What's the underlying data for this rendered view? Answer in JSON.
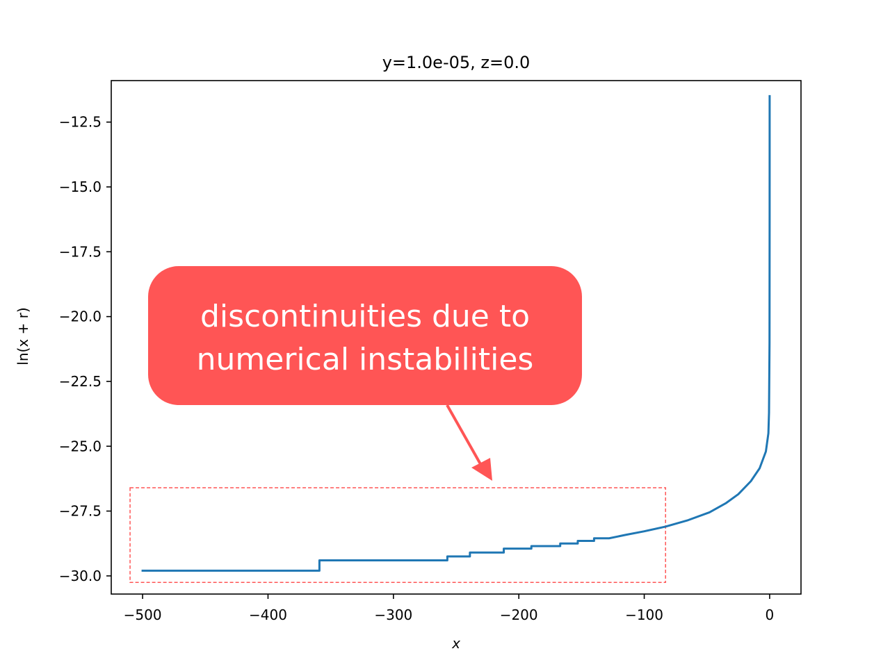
{
  "chart_data": {
    "type": "line",
    "title": "y=1.0e-05, z=0.0",
    "xlabel": "x",
    "ylabel": "ln(x + r)",
    "xlim": [
      -525,
      25
    ],
    "ylim": [
      -30.7,
      -10.9
    ],
    "x_ticks": [
      {
        "value": -500,
        "label": "−500"
      },
      {
        "value": -400,
        "label": "−400"
      },
      {
        "value": -300,
        "label": "−300"
      },
      {
        "value": -200,
        "label": "−200"
      },
      {
        "value": -100,
        "label": "−100"
      },
      {
        "value": 0,
        "label": "0"
      }
    ],
    "y_ticks": [
      {
        "value": -12.5,
        "label": "−12.5"
      },
      {
        "value": -15.0,
        "label": "−15.0"
      },
      {
        "value": -17.5,
        "label": "−17.5"
      },
      {
        "value": -20.0,
        "label": "−20.0"
      },
      {
        "value": -22.5,
        "label": "−22.5"
      },
      {
        "value": -25.0,
        "label": "−25.0"
      },
      {
        "value": -27.5,
        "label": "−27.5"
      },
      {
        "value": -30.0,
        "label": "−30.0"
      }
    ],
    "grid": false,
    "legend": "none",
    "series_color": "#1f77b4",
    "series": [
      {
        "x": [
          -500,
          -359,
          -359,
          -257,
          -257,
          -239,
          -239,
          -212,
          -212,
          -190,
          -190,
          -167,
          -167,
          -153,
          -153,
          -140,
          -140,
          -128,
          -115,
          -100,
          -83,
          -65,
          -48,
          -35,
          -25,
          -15,
          -8,
          -3,
          -1,
          -0.5,
          -0.1,
          -0.01,
          0
        ],
        "y": [
          -29.8,
          -29.8,
          -29.4,
          -29.4,
          -29.25,
          -29.25,
          -29.1,
          -29.1,
          -28.95,
          -28.95,
          -28.85,
          -28.85,
          -28.75,
          -28.75,
          -28.65,
          -28.65,
          -28.55,
          -28.55,
          -28.42,
          -28.28,
          -28.1,
          -27.85,
          -27.55,
          -27.2,
          -26.85,
          -26.35,
          -25.85,
          -25.2,
          -24.5,
          -23.7,
          -21.0,
          -16.0,
          -11.5
        ]
      }
    ],
    "annotations": [
      {
        "text": "discontinuities due to\nnumerical instabilities",
        "color": "#ff5555",
        "text_color": "#ffffff"
      }
    ],
    "highlight_region": {
      "x": [
        -510,
        -83
      ],
      "y": [
        -30.25,
        -26.6
      ],
      "color": "#ff5555",
      "style": "dashed"
    }
  }
}
